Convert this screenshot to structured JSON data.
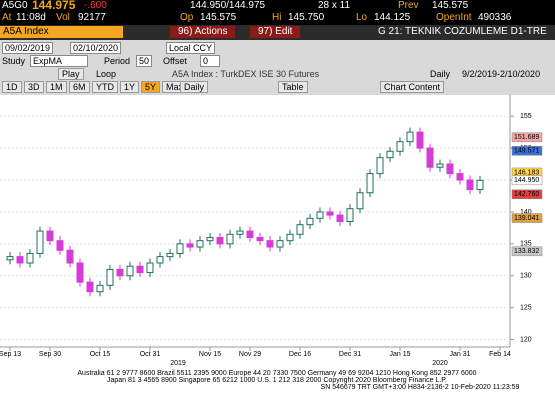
{
  "quote": {
    "ticker": "A5G0",
    "last": "144.975",
    "change": "-.600",
    "bid_ask": "144.950/144.975",
    "size": "28 x 11",
    "prev_label": "Prev",
    "prev": "145.575",
    "at_label": "At",
    "time": "11:08d",
    "vol_label": "Vol",
    "volume": "92177",
    "op_label": "Op",
    "open": "145.575",
    "hi_label": "Hi",
    "high": "145.750",
    "lo_label": "Lo",
    "low": "144.125",
    "oi_label": "OpenInt",
    "open_interest": "490336"
  },
  "toolbar": {
    "security": "A5A Index",
    "actions": "96) Actions",
    "edit": "97) Edit",
    "page_title": "G 21: TEKNIK COZUMLEME D1-TRE"
  },
  "settings": {
    "start_date": "09/02/2019",
    "end_date": "02/10/2020",
    "currency": "Local CCY",
    "study_label": "Study",
    "study": "ExpMA",
    "period_label": "Period",
    "period": "50",
    "offset_label": "Offset",
    "offset": "0",
    "play": "Play",
    "loop": "Loop",
    "description": "A5A Index : TurkDEX ISE 30 Futures",
    "frequency": "Daily",
    "range": "9/2/2019-2/10/2020",
    "periods": [
      "1D",
      "3D",
      "1M",
      "6M",
      "YTD",
      "1Y",
      "5Y",
      "Max"
    ],
    "daily": "Daily",
    "table": "Table",
    "chart_content": "Chart Content"
  },
  "chart_data": {
    "type": "candlestick",
    "categories": [
      "Sep 13",
      null,
      null,
      null,
      "Sep 30",
      null,
      null,
      null,
      null,
      "Oct 15",
      null,
      null,
      null,
      null,
      "Oct 31",
      null,
      null,
      null,
      null,
      null,
      "Nov 15",
      null,
      null,
      null,
      "Nov 29",
      null,
      null,
      null,
      null,
      "Dec 16",
      null,
      null,
      null,
      null,
      "Dec 31",
      null,
      null,
      null,
      null,
      "Jan 15",
      null,
      null,
      null,
      null,
      null,
      "Jan 31",
      null,
      null,
      null,
      "Feb 14"
    ],
    "open": [
      132.5,
      133,
      132,
      133.5,
      137,
      135.5,
      134,
      132,
      129,
      127.5,
      128.5,
      131,
      130,
      131.5,
      130.5,
      132,
      133,
      133.5,
      135,
      134.5,
      135.5,
      136,
      135,
      136.5,
      137,
      136,
      135.5,
      134.5,
      135.5,
      136.5,
      138,
      139,
      140,
      139.5,
      138.5,
      140.5,
      143,
      146,
      148.5,
      149.5,
      151,
      152.5,
      150,
      147,
      147.5,
      146,
      145,
      143.5,
      null,
      null
    ],
    "high": [
      133.7,
      133.7,
      134.2,
      137.7,
      137.7,
      136.2,
      134.7,
      132.7,
      129.7,
      129.2,
      131.7,
      131.7,
      132.2,
      132.2,
      132.7,
      133.7,
      134.2,
      135.7,
      135.7,
      136.2,
      136.7,
      136.7,
      137.2,
      137.7,
      137.7,
      136.7,
      136.2,
      136.2,
      137.2,
      138.7,
      139.7,
      140.7,
      140.7,
      140.2,
      141.2,
      143.7,
      146.7,
      149.2,
      150.2,
      151.7,
      153.2,
      153.2,
      150.7,
      148.2,
      148.2,
      146.7,
      145.7,
      145.65,
      null,
      null
    ],
    "low": [
      131.8,
      131.3,
      131.3,
      132.8,
      134.8,
      133.3,
      131.3,
      128.3,
      126.8,
      126.8,
      127.8,
      129.3,
      129.3,
      129.8,
      129.8,
      131.3,
      132.3,
      132.8,
      133.8,
      133.8,
      134.8,
      134.3,
      134.3,
      135.8,
      135.3,
      134.8,
      133.8,
      133.8,
      134.8,
      135.8,
      137.3,
      138.3,
      138.8,
      137.8,
      137.8,
      139.8,
      142.3,
      145.3,
      147.8,
      148.8,
      150.3,
      149.3,
      146.3,
      146.3,
      145.3,
      144.3,
      142.8,
      142.8,
      null,
      null
    ],
    "close": [
      133,
      132,
      133.5,
      137,
      135.5,
      134,
      132,
      129,
      127.5,
      128.5,
      131,
      130,
      131.5,
      130.5,
      132,
      133,
      133.5,
      135,
      134.5,
      135.5,
      136,
      135,
      136.5,
      137,
      136,
      135.5,
      134.5,
      135.5,
      136.5,
      138,
      139,
      140,
      139.5,
      138.5,
      140.5,
      143,
      146,
      148.5,
      149.5,
      151,
      152.5,
      150,
      147,
      147.5,
      146,
      145,
      143.5,
      144.95,
      null,
      null
    ],
    "up_color": "#1f6f5c",
    "down_color": "#d63bd6",
    "years": [
      "2019",
      "2020"
    ],
    "ylim": [
      119,
      158
    ],
    "yticks": [
      120,
      125,
      130,
      135,
      140,
      145,
      150,
      155
    ],
    "grid": true,
    "price_labels": [
      {
        "value": 151.689,
        "label": "151.689",
        "color": "#f4a6a6"
      },
      {
        "value": 149.571,
        "label": "149.571",
        "color": "#3b6fd6"
      },
      {
        "value": 146.183,
        "label": "146.183",
        "color": "#ffd24d"
      },
      {
        "value": 144.95,
        "label": "144.950",
        "color": "#ffffff"
      },
      {
        "value": 142.76,
        "label": "142.760",
        "color": "#e04040"
      },
      {
        "value": 139.041,
        "label": "139.041",
        "color": "#e0a040"
      },
      {
        "value": 133.832,
        "label": "133.832",
        "color": "#c8c8c8"
      }
    ]
  },
  "footer": [
    "Australia 61 2 9777 8600 Brazil 5511 2395 9000 Europe 44 20 7330 7500 Germany 49 69 9204 1210 Hong Kong 852 2977 6000",
    "Japan 81 3 4565 8900     Singapore 65 6212 1000     U.S. 1 212 318 2000     Copyright 2020 Bloomberg Finance L.P.",
    "SN 546679 TRT  GMT+3:00 H834-2136-2 10-Feb-2020 11:23:59"
  ]
}
